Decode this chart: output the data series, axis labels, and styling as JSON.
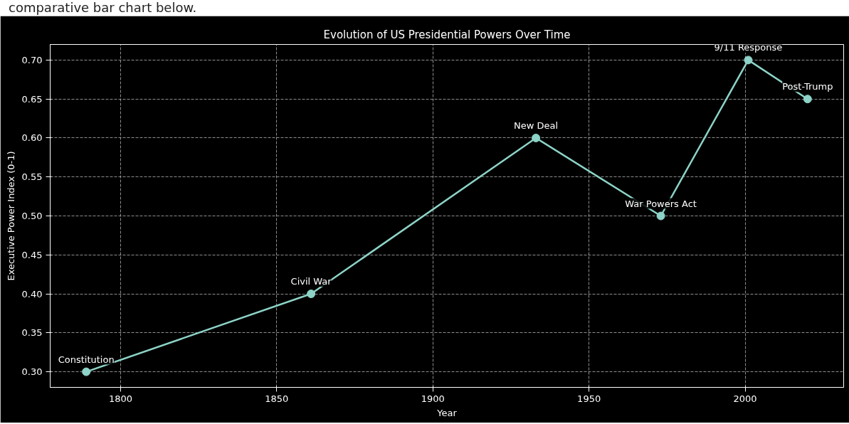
{
  "chart_data": {
    "type": "line",
    "title": "Evolution of US Presidential Powers Over Time",
    "xlabel": "Year",
    "ylabel": "Executive Power Index (0-1)",
    "x": [
      1789,
      1861,
      1933,
      1973,
      2001,
      2020
    ],
    "series": [
      {
        "color": "#8dd3c7",
        "values": [
          0.3,
          0.4,
          0.6,
          0.5,
          0.7,
          0.65
        ]
      }
    ],
    "xlim": [
      1777.45,
      2031.55
    ],
    "xticks": [
      1800,
      1850,
      1900,
      1950,
      2000
    ],
    "ylim": [
      0.28,
      0.72
    ],
    "yticks": [
      {
        "value": 0.3,
        "label": "0.30"
      },
      {
        "value": 0.35,
        "label": "0.35"
      },
      {
        "value": 0.4,
        "label": "0.40"
      },
      {
        "value": 0.45,
        "label": "0.45"
      },
      {
        "value": 0.5,
        "label": "0.50"
      },
      {
        "value": 0.55,
        "label": "0.55"
      },
      {
        "value": 0.6,
        "label": "0.60"
      },
      {
        "value": 0.65,
        "label": "0.65"
      },
      {
        "value": 0.7,
        "label": "0.70"
      }
    ],
    "grid": true,
    "marker": "circle",
    "line_style": "solid",
    "annotations": [
      "comparative bar chart below.",
      {
        "text": "Constitution",
        "x": 1789,
        "y": 0.3
      },
      {
        "text": "Civil War",
        "x": 1861,
        "y": 0.4
      },
      {
        "text": "New Deal",
        "x": 1933,
        "y": 0.6
      },
      {
        "text": "War Powers Act",
        "x": 1973,
        "y": 0.5
      },
      {
        "text": "9/11 Response",
        "x": 2001,
        "y": 0.7
      },
      {
        "text": "Post-Trump",
        "x": 2020,
        "y": 0.65
      }
    ]
  }
}
